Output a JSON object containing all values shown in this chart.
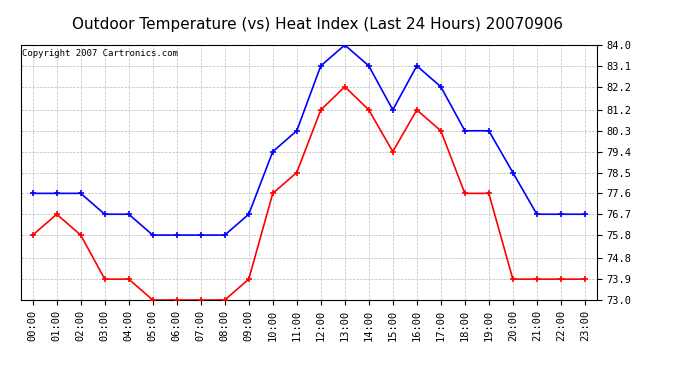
{
  "title": "Outdoor Temperature (vs) Heat Index (Last 24 Hours) 20070906",
  "copyright_text": "Copyright 2007 Cartronics.com",
  "hours": [
    "00:00",
    "01:00",
    "02:00",
    "03:00",
    "04:00",
    "05:00",
    "06:00",
    "07:00",
    "08:00",
    "09:00",
    "10:00",
    "11:00",
    "12:00",
    "13:00",
    "14:00",
    "15:00",
    "16:00",
    "17:00",
    "18:00",
    "19:00",
    "20:00",
    "21:00",
    "22:00",
    "23:00"
  ],
  "blue_line": [
    77.6,
    77.6,
    77.6,
    76.7,
    76.7,
    75.8,
    75.8,
    75.8,
    75.8,
    76.7,
    79.4,
    80.3,
    83.1,
    84.0,
    83.1,
    81.2,
    83.1,
    82.2,
    80.3,
    80.3,
    78.5,
    76.7,
    76.7,
    76.7
  ],
  "red_line": [
    75.8,
    76.7,
    75.8,
    73.9,
    73.9,
    73.0,
    73.0,
    73.0,
    73.0,
    73.9,
    77.6,
    78.5,
    81.2,
    82.2,
    81.2,
    79.4,
    81.2,
    80.3,
    77.6,
    77.6,
    73.9,
    73.9,
    73.9,
    73.9
  ],
  "blue_color": "#0000FF",
  "red_color": "#FF0000",
  "bg_color": "#FFFFFF",
  "plot_bg_color": "#FFFFFF",
  "grid_color": "#BBBBBB",
  "yticks": [
    73.0,
    73.9,
    74.8,
    75.8,
    76.7,
    77.6,
    78.5,
    79.4,
    80.3,
    81.2,
    82.2,
    83.1,
    84.0
  ],
  "ymin": 73.0,
  "ymax": 84.0,
  "title_fontsize": 11,
  "tick_fontsize": 7.5,
  "copyright_fontsize": 6.5
}
